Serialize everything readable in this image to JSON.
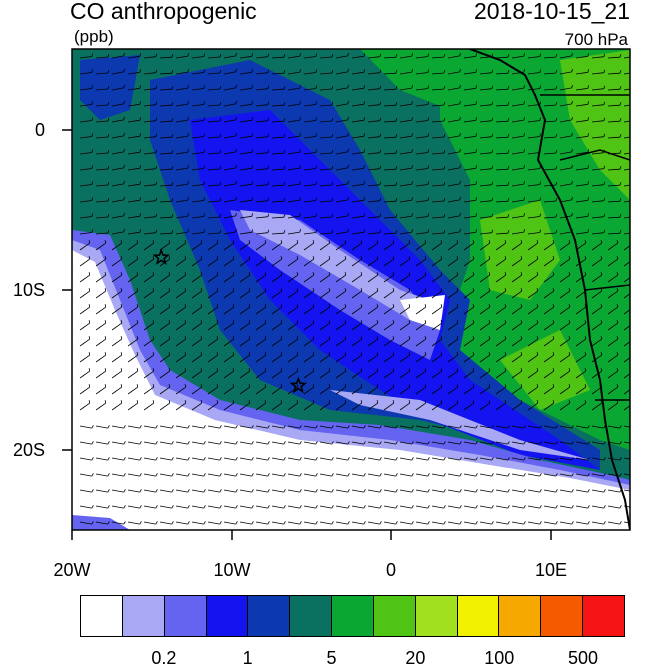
{
  "header": {
    "title": "CO anthropogenic",
    "units": "(ppb)",
    "timestamp": "2018-10-15_21",
    "level": "700 hPa"
  },
  "map": {
    "variable": "CO anthropogenic",
    "projection": "lat-lon",
    "lat_range": [
      "5N",
      "25S"
    ],
    "lon_range": [
      "20W",
      "15E"
    ],
    "lat_ticks": [
      "0",
      "10S",
      "20S"
    ],
    "lon_ticks": [
      "20W",
      "10W",
      "0",
      "10E"
    ],
    "overlay": "wind barbs",
    "markers": [
      {
        "type": "star",
        "lat": -8.0,
        "lon": -14.4
      },
      {
        "type": "star",
        "lat": -16.0,
        "lon": -5.8
      }
    ]
  },
  "colorbar": {
    "colors": [
      "#ffffff",
      "#a8a8f5",
      "#6464f0",
      "#1414f0",
      "#0c38b0",
      "#0a7060",
      "#0aa832",
      "#50c414",
      "#a0e01e",
      "#f0f000",
      "#f5a800",
      "#f55a00",
      "#f51414"
    ],
    "labels": [
      {
        "text": "0.2",
        "boundary": 2
      },
      {
        "text": "1",
        "boundary": 4
      },
      {
        "text": "5",
        "boundary": 6
      },
      {
        "text": "20",
        "boundary": 8
      },
      {
        "text": "100",
        "boundary": 10
      },
      {
        "text": "500",
        "boundary": 12
      }
    ]
  }
}
